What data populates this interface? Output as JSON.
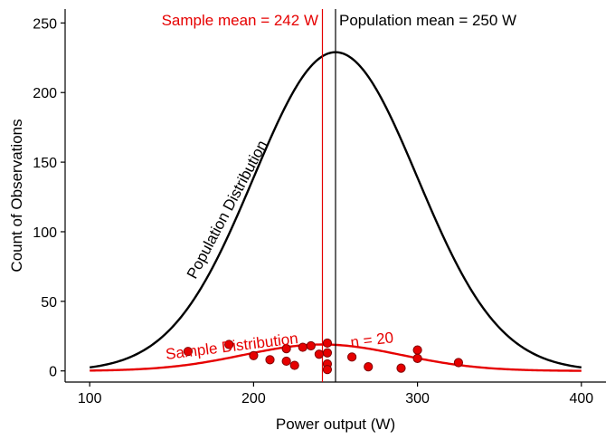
{
  "chart_data": {
    "type": "line",
    "xlabel": "Power output (W)",
    "ylabel": "Count of Observations",
    "xlim": [
      85,
      415
    ],
    "ylim": [
      -8,
      260
    ],
    "x_ticks": [
      100,
      200,
      300,
      400
    ],
    "y_ticks": [
      0,
      50,
      100,
      150,
      200,
      250
    ],
    "grid": false,
    "colors": {
      "population": "#000000",
      "sample": "#e60000",
      "point_fill": "#e60000",
      "point_stroke": "#800000"
    },
    "series": [
      {
        "name": "Population Distribution",
        "curve": "normal",
        "mean": 250,
        "sd": 50,
        "peak": 229,
        "x_range": [
          100,
          400
        ]
      },
      {
        "name": "Sample Distribution",
        "curve": "normal",
        "mean": 242,
        "sd": 48,
        "peak": 19,
        "x_range": [
          100,
          400
        ]
      }
    ],
    "sample_points": [
      {
        "x": 160,
        "y": 14
      },
      {
        "x": 185,
        "y": 19
      },
      {
        "x": 200,
        "y": 11
      },
      {
        "x": 210,
        "y": 8
      },
      {
        "x": 220,
        "y": 16
      },
      {
        "x": 220,
        "y": 7
      },
      {
        "x": 225,
        "y": 4
      },
      {
        "x": 230,
        "y": 17
      },
      {
        "x": 235,
        "y": 18
      },
      {
        "x": 240,
        "y": 12
      },
      {
        "x": 245,
        "y": 20
      },
      {
        "x": 245,
        "y": 13
      },
      {
        "x": 245,
        "y": 5
      },
      {
        "x": 245,
        "y": 1
      },
      {
        "x": 260,
        "y": 10
      },
      {
        "x": 270,
        "y": 3
      },
      {
        "x": 290,
        "y": 2
      },
      {
        "x": 300,
        "y": 15
      },
      {
        "x": 300,
        "y": 9
      },
      {
        "x": 325,
        "y": 6
      }
    ],
    "reference_lines": [
      {
        "name": "sample-mean",
        "x": 242,
        "label": "Sample mean = 242 W",
        "color": "#e60000"
      },
      {
        "name": "population-mean",
        "x": 250,
        "label": "Population mean = 250 W",
        "color": "#000000"
      }
    ],
    "annotations": {
      "population_curve_label": "Population Distribution",
      "sample_curve_label": "Sample Distribution",
      "n_label": "n = 20"
    }
  }
}
